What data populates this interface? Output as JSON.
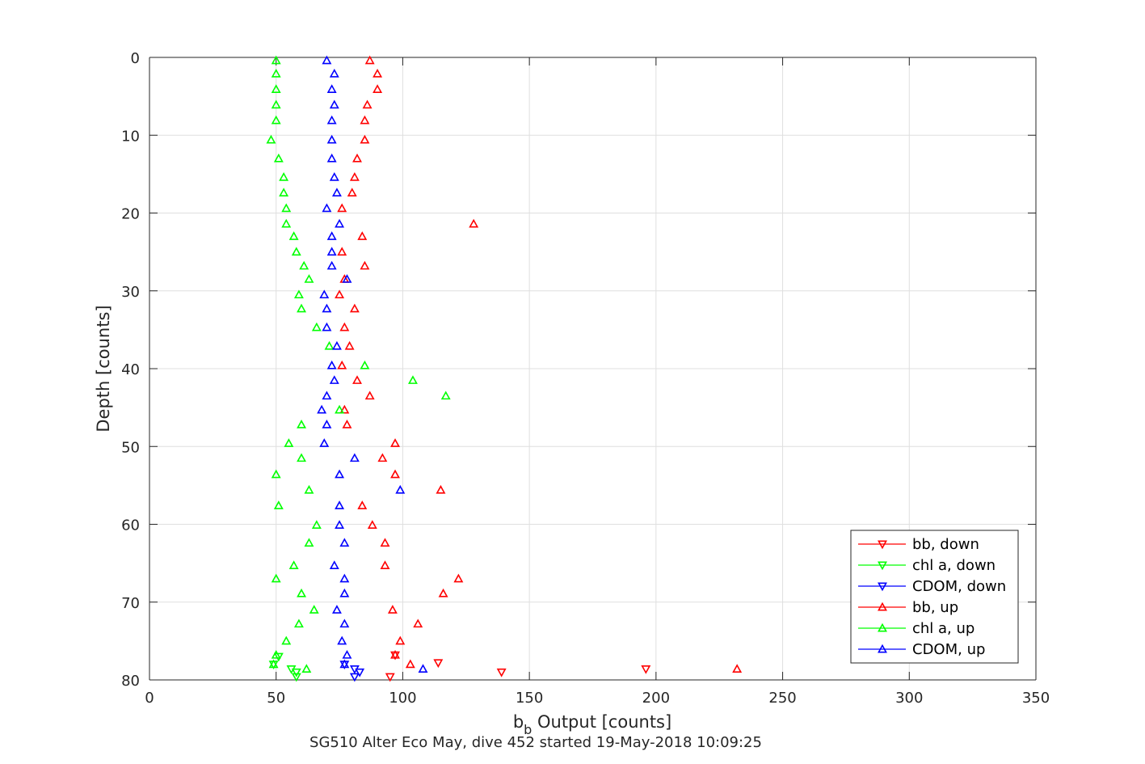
{
  "chart_data": {
    "type": "scatter",
    "xlabel_main": "b",
    "xlabel_sub": "b",
    "xlabel_rest": " Output [counts]",
    "ylabel": "Depth [counts]",
    "footer": "SG510 Alter Eco May, dive 452 started 19-May-2018 10:09:25",
    "xlim": [
      0,
      350
    ],
    "ylim": [
      0,
      80
    ],
    "y_reversed": true,
    "grid": true,
    "xticks": [
      "0",
      "50",
      "100",
      "150",
      "200",
      "250",
      "300",
      "350"
    ],
    "yticks": [
      "0",
      "10",
      "20",
      "30",
      "40",
      "50",
      "60",
      "70",
      "80"
    ],
    "legend_position": "bottom-right",
    "series": [
      {
        "name": "bb, down",
        "color": "#ff0000",
        "marker": "down",
        "points": [
          [
            97,
            76.8
          ],
          [
            114,
            77.8
          ],
          [
            139,
            79.0
          ],
          [
            196,
            78.6
          ],
          [
            95,
            79.6
          ]
        ]
      },
      {
        "name": "chl a, down",
        "color": "#00ff00",
        "marker": "down",
        "points": [
          [
            49,
            78.0
          ],
          [
            51,
            77.0
          ],
          [
            56,
            78.6
          ],
          [
            58,
            79.0
          ],
          [
            58,
            79.6
          ]
        ]
      },
      {
        "name": "CDOM, down",
        "color": "#0000ff",
        "marker": "down",
        "points": [
          [
            77,
            78.0
          ],
          [
            81,
            78.6
          ],
          [
            83,
            79.0
          ],
          [
            81,
            79.6
          ]
        ]
      },
      {
        "name": "bb, up",
        "color": "#ff0000",
        "marker": "up",
        "points": [
          [
            87,
            0.4
          ],
          [
            90,
            2.1
          ],
          [
            90,
            4.1
          ],
          [
            86,
            6.1
          ],
          [
            85,
            8.1
          ],
          [
            85,
            10.6
          ],
          [
            82,
            13.0
          ],
          [
            81,
            15.4
          ],
          [
            80,
            17.4
          ],
          [
            76,
            19.4
          ],
          [
            128,
            21.4
          ],
          [
            84,
            23.0
          ],
          [
            76,
            25.0
          ],
          [
            85,
            26.8
          ],
          [
            77,
            28.5
          ],
          [
            75,
            30.5
          ],
          [
            81,
            32.3
          ],
          [
            77,
            34.7
          ],
          [
            79,
            37.1
          ],
          [
            76,
            39.6
          ],
          [
            82,
            41.5
          ],
          [
            87,
            43.5
          ],
          [
            77,
            45.3
          ],
          [
            78,
            47.2
          ],
          [
            97,
            49.6
          ],
          [
            92,
            51.5
          ],
          [
            97,
            53.6
          ],
          [
            115,
            55.6
          ],
          [
            84,
            57.6
          ],
          [
            88,
            60.1
          ],
          [
            93,
            62.4
          ],
          [
            93,
            65.3
          ],
          [
            122,
            67.0
          ],
          [
            116,
            68.9
          ],
          [
            96,
            71.0
          ],
          [
            106,
            72.8
          ],
          [
            99,
            75.0
          ],
          [
            97,
            76.8
          ],
          [
            103,
            78.0
          ],
          [
            232,
            78.6
          ]
        ]
      },
      {
        "name": "chl a, up",
        "color": "#00ff00",
        "marker": "up",
        "points": [
          [
            50,
            0.4
          ],
          [
            50,
            2.1
          ],
          [
            50,
            4.1
          ],
          [
            50,
            6.1
          ],
          [
            50,
            8.1
          ],
          [
            48,
            10.6
          ],
          [
            51,
            13.0
          ],
          [
            53,
            15.4
          ],
          [
            53,
            17.4
          ],
          [
            54,
            19.4
          ],
          [
            54,
            21.4
          ],
          [
            57,
            23.0
          ],
          [
            58,
            25.0
          ],
          [
            61,
            26.8
          ],
          [
            63,
            28.5
          ],
          [
            59,
            30.5
          ],
          [
            60,
            32.3
          ],
          [
            66,
            34.7
          ],
          [
            71,
            37.1
          ],
          [
            85,
            39.6
          ],
          [
            104,
            41.5
          ],
          [
            117,
            43.5
          ],
          [
            75,
            45.3
          ],
          [
            60,
            47.2
          ],
          [
            55,
            49.6
          ],
          [
            60,
            51.5
          ],
          [
            50,
            53.6
          ],
          [
            63,
            55.6
          ],
          [
            51,
            57.6
          ],
          [
            66,
            60.1
          ],
          [
            63,
            62.4
          ],
          [
            57,
            65.3
          ],
          [
            50,
            67.0
          ],
          [
            60,
            68.9
          ],
          [
            65,
            71.0
          ],
          [
            59,
            72.8
          ],
          [
            54,
            75.0
          ],
          [
            50,
            76.8
          ],
          [
            49,
            78.0
          ],
          [
            62,
            78.6
          ]
        ]
      },
      {
        "name": "CDOM, up",
        "color": "#0000ff",
        "marker": "up",
        "points": [
          [
            70,
            0.4
          ],
          [
            73,
            2.1
          ],
          [
            72,
            4.1
          ],
          [
            73,
            6.1
          ],
          [
            72,
            8.1
          ],
          [
            72,
            10.6
          ],
          [
            72,
            13.0
          ],
          [
            73,
            15.4
          ],
          [
            74,
            17.4
          ],
          [
            70,
            19.4
          ],
          [
            75,
            21.4
          ],
          [
            72,
            23.0
          ],
          [
            72,
            25.0
          ],
          [
            72,
            26.8
          ],
          [
            78,
            28.5
          ],
          [
            69,
            30.5
          ],
          [
            70,
            32.3
          ],
          [
            70,
            34.7
          ],
          [
            74,
            37.1
          ],
          [
            72,
            39.6
          ],
          [
            73,
            41.5
          ],
          [
            70,
            43.5
          ],
          [
            68,
            45.3
          ],
          [
            70,
            47.2
          ],
          [
            69,
            49.6
          ],
          [
            81,
            51.5
          ],
          [
            75,
            53.6
          ],
          [
            99,
            55.6
          ],
          [
            75,
            57.6
          ],
          [
            75,
            60.1
          ],
          [
            77,
            62.4
          ],
          [
            73,
            65.3
          ],
          [
            77,
            67.0
          ],
          [
            77,
            68.9
          ],
          [
            74,
            71.0
          ],
          [
            77,
            72.8
          ],
          [
            76,
            75.0
          ],
          [
            78,
            76.8
          ],
          [
            77,
            78.0
          ],
          [
            108,
            78.6
          ]
        ]
      }
    ]
  }
}
